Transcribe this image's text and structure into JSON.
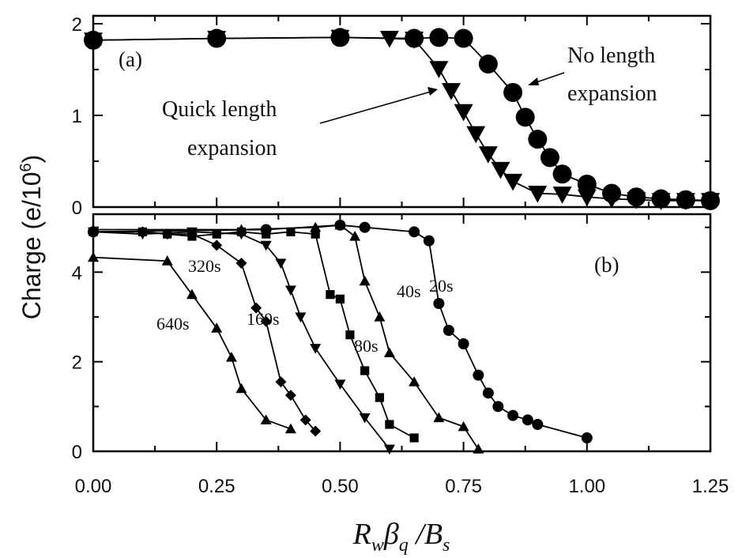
{
  "chart_data": [
    {
      "type": "line",
      "panel_label": "(a)",
      "ylabel": "Charge (e/10",
      "ylabel_sup": "6",
      "ylabel_close": ")",
      "xlabel_parts": {
        "r": "R",
        "w": "w",
        "beta": "β",
        "q": "q",
        "slash": " /B",
        "s": "s"
      },
      "xlim": [
        0,
        1.25
      ],
      "ylim": [
        0,
        2
      ],
      "xticks": [
        "0.00",
        "0.25",
        "0.50",
        "0.75",
        "1.00",
        "1.25"
      ],
      "yticks": [
        "0",
        "1",
        "2"
      ],
      "annotations": {
        "no_expansion_line1": "No length",
        "no_expansion_line2": "expansion",
        "quick_line1": "Quick length",
        "quick_line2": "expansion"
      },
      "series": [
        {
          "marker": "circle",
          "x": [
            0.0,
            0.25,
            0.5,
            0.65,
            0.7,
            0.75,
            0.8,
            0.85,
            0.875,
            0.9,
            0.925,
            0.95,
            1.0,
            1.05,
            1.1,
            1.15,
            1.2,
            1.25
          ],
          "y": [
            1.82,
            1.84,
            1.85,
            1.84,
            1.85,
            1.84,
            1.56,
            1.25,
            0.98,
            0.74,
            0.54,
            0.36,
            0.25,
            0.15,
            0.11,
            0.09,
            0.08,
            0.07
          ]
        },
        {
          "marker": "triangle-down",
          "x": [
            0.0,
            0.25,
            0.5,
            0.6,
            0.65,
            0.7,
            0.725,
            0.75,
            0.775,
            0.8,
            0.825,
            0.85,
            0.9,
            0.95,
            1.0,
            1.05,
            1.1,
            1.15,
            1.2,
            1.25
          ],
          "y": [
            1.82,
            1.84,
            1.85,
            1.84,
            1.83,
            1.51,
            1.27,
            1.04,
            0.8,
            0.58,
            0.41,
            0.28,
            0.15,
            0.14,
            0.11,
            0.09,
            0.08,
            0.07,
            0.07,
            0.07
          ]
        }
      ]
    },
    {
      "type": "line",
      "panel_label": "(b)",
      "xlim": [
        0,
        1.25
      ],
      "ylim": [
        0,
        5.1
      ],
      "yticks": [
        "0",
        "2",
        "4"
      ],
      "series": [
        {
          "name": "640s",
          "marker": "triangle-up",
          "x": [
            0.0,
            0.15,
            0.2,
            0.25,
            0.28,
            0.3,
            0.35,
            0.4
          ],
          "y": [
            4.33,
            4.25,
            3.5,
            2.75,
            2.1,
            1.4,
            0.7,
            0.5
          ]
        },
        {
          "name": "320s",
          "marker": "diamond",
          "x": [
            0.0,
            0.1,
            0.15,
            0.2,
            0.25,
            0.3,
            0.33,
            0.35,
            0.38,
            0.4,
            0.43,
            0.45
          ],
          "y": [
            4.9,
            4.9,
            4.85,
            4.85,
            4.6,
            4.2,
            3.2,
            2.9,
            1.55,
            1.25,
            0.7,
            0.45
          ]
        },
        {
          "name": "160s",
          "marker": "triangle-down",
          "x": [
            0.0,
            0.1,
            0.2,
            0.3,
            0.35,
            0.38,
            0.4,
            0.42,
            0.45,
            0.5,
            0.55,
            0.6
          ],
          "y": [
            4.9,
            4.85,
            4.9,
            4.85,
            4.6,
            4.2,
            3.6,
            3.0,
            2.3,
            1.5,
            0.75,
            0.05
          ]
        },
        {
          "name": "80s",
          "marker": "square",
          "x": [
            0.0,
            0.1,
            0.15,
            0.2,
            0.25,
            0.3,
            0.35,
            0.4,
            0.45,
            0.48,
            0.5,
            0.52,
            0.55,
            0.58,
            0.6,
            0.65
          ],
          "y": [
            4.9,
            4.9,
            4.85,
            4.8,
            4.85,
            4.9,
            4.85,
            4.9,
            4.85,
            3.5,
            3.4,
            2.6,
            1.8,
            1.2,
            0.6,
            0.3
          ]
        },
        {
          "name": "40s",
          "marker": "triangle-up",
          "x": [
            0.0,
            0.3,
            0.45,
            0.5,
            0.53,
            0.55,
            0.58,
            0.6,
            0.65,
            0.7,
            0.75,
            0.78
          ],
          "y": [
            4.95,
            4.95,
            5.0,
            5.05,
            4.8,
            3.8,
            3.0,
            2.2,
            1.55,
            0.75,
            0.55,
            0.05
          ]
        },
        {
          "name": "20s",
          "marker": "circle",
          "x": [
            0.0,
            0.35,
            0.5,
            0.55,
            0.65,
            0.68,
            0.7,
            0.72,
            0.75,
            0.78,
            0.8,
            0.82,
            0.85,
            0.88,
            0.9,
            1.0
          ],
          "y": [
            4.9,
            4.95,
            5.05,
            5.0,
            4.9,
            4.7,
            3.3,
            2.7,
            2.4,
            1.7,
            1.3,
            1.0,
            0.8,
            0.7,
            0.6,
            0.3
          ]
        }
      ]
    }
  ]
}
